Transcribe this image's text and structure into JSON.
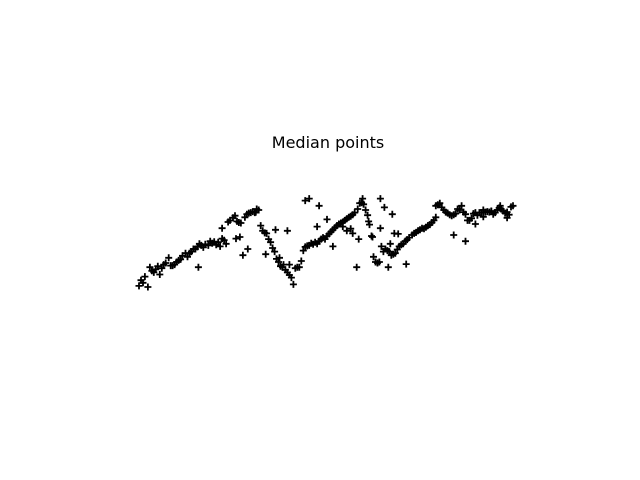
{
  "chart_data": {
    "type": "scatter",
    "title": "Median points",
    "xlabel": "",
    "ylabel": "",
    "xlim": [
      0,
      380
    ],
    "ylim": [
      -1,
      1
    ],
    "grid": false,
    "axes_visible": false,
    "marker": "+",
    "marker_color": "#000000",
    "series": [
      {
        "points": [
          [
            0,
            -0.96
          ],
          [
            2,
            -0.85
          ],
          [
            4,
            -0.9
          ],
          [
            6,
            -0.78
          ],
          [
            9,
            -0.98
          ],
          [
            11,
            -0.6
          ],
          [
            13,
            -0.67
          ],
          [
            15,
            -0.7
          ],
          [
            17,
            -0.64
          ],
          [
            19,
            -0.58
          ],
          [
            21,
            -0.74
          ],
          [
            23,
            -0.62
          ],
          [
            25,
            -0.55
          ],
          [
            27,
            -0.52
          ],
          [
            30,
            -0.42
          ],
          [
            32,
            -0.57
          ],
          [
            34,
            -0.57
          ],
          [
            36,
            -0.55
          ],
          [
            38,
            -0.5
          ],
          [
            40,
            -0.47
          ],
          [
            42,
            -0.45
          ],
          [
            44,
            -0.38
          ],
          [
            47,
            -0.33
          ],
          [
            49,
            -0.4
          ],
          [
            51,
            -0.33
          ],
          [
            53,
            -0.3
          ],
          [
            55,
            -0.25
          ],
          [
            57,
            -0.25
          ],
          [
            59,
            -0.21
          ],
          [
            61,
            -0.15
          ],
          [
            63,
            -0.18
          ],
          [
            65,
            -0.22
          ],
          [
            67,
            -0.16
          ],
          [
            70,
            -0.18
          ],
          [
            72,
            -0.1
          ],
          [
            74,
            -0.14
          ],
          [
            76,
            -0.11
          ],
          [
            78,
            -0.17
          ],
          [
            80,
            -0.12
          ],
          [
            82,
            -0.2
          ],
          [
            84,
            -0.05
          ],
          [
            86,
            -0.08
          ],
          [
            88,
            -0.15
          ],
          [
            90,
            0.27
          ],
          [
            92,
            0.3
          ],
          [
            95,
            0.35
          ],
          [
            97,
            0.39
          ],
          [
            99,
            0.28
          ],
          [
            101,
            0.26
          ],
          [
            103,
            0.25
          ],
          [
            105,
            -0.37
          ],
          [
            107,
            0.36
          ],
          [
            109,
            0.42
          ],
          [
            111,
            0.44
          ],
          [
            113,
            0.45
          ],
          [
            115,
            0.47
          ],
          [
            117,
            0.45
          ],
          [
            119,
            0.52
          ],
          [
            121,
            0.5
          ],
          [
            123,
            0.2
          ],
          [
            125,
            0.1
          ],
          [
            127,
            0.06
          ],
          [
            129,
            0.05
          ],
          [
            131,
            -0.06
          ],
          [
            133,
            -0.12
          ],
          [
            135,
            -0.23
          ],
          [
            137,
            -0.3
          ],
          [
            139,
            -0.44
          ],
          [
            141,
            -0.5
          ],
          [
            143,
            -0.58
          ],
          [
            145,
            -0.6
          ],
          [
            148,
            -0.65
          ],
          [
            150,
            -0.7
          ],
          [
            152,
            -0.75
          ],
          [
            154,
            -0.8
          ],
          [
            156,
            -0.93
          ],
          [
            158,
            -0.62
          ],
          [
            160,
            -0.6
          ],
          [
            162,
            -0.6
          ],
          [
            164,
            -0.48
          ],
          [
            166,
            -0.28
          ],
          [
            168,
            -0.21
          ],
          [
            170,
            -0.19
          ],
          [
            172,
            -0.18
          ],
          [
            174,
            -0.14
          ],
          [
            176,
            -0.16
          ],
          [
            178,
            -0.12
          ],
          [
            180,
            -0.15
          ],
          [
            182,
            -0.1
          ],
          [
            184,
            -0.06
          ],
          [
            186,
            -0.03
          ],
          [
            188,
            -0.06
          ],
          [
            190,
            0.0
          ],
          [
            192,
            0.04
          ],
          [
            194,
            0.08
          ],
          [
            196,
            0.12
          ],
          [
            198,
            0.16
          ],
          [
            200,
            0.2
          ],
          [
            202,
            0.23
          ],
          [
            204,
            0.25
          ],
          [
            206,
            0.27
          ],
          [
            208,
            0.3
          ],
          [
            210,
            0.33
          ],
          [
            212,
            0.36
          ],
          [
            214,
            0.38
          ],
          [
            216,
            0.41
          ],
          [
            218,
            0.45
          ],
          [
            221,
            0.52
          ],
          [
            223,
            0.63
          ],
          [
            225,
            0.64
          ],
          [
            227,
            0.61
          ],
          [
            229,
            0.5
          ],
          [
            231,
            0.4
          ],
          [
            233,
            0.22
          ],
          [
            235,
            0.0
          ],
          [
            237,
            -0.4
          ],
          [
            239,
            -0.5
          ],
          [
            241,
            -0.52
          ],
          [
            243,
            -0.5
          ],
          [
            245,
            -0.2
          ],
          [
            247,
            -0.3
          ],
          [
            249,
            -0.25
          ],
          [
            251,
            -0.28
          ],
          [
            253,
            -0.3
          ],
          [
            255,
            -0.37
          ],
          [
            257,
            -0.35
          ],
          [
            259,
            -0.33
          ],
          [
            261,
            -0.26
          ],
          [
            263,
            -0.2
          ],
          [
            265,
            -0.17
          ],
          [
            267,
            -0.15
          ],
          [
            269,
            -0.1
          ],
          [
            271,
            -0.07
          ],
          [
            273,
            -0.03
          ],
          [
            276,
            0.02
          ],
          [
            278,
            0.05
          ],
          [
            280,
            0.07
          ],
          [
            282,
            0.1
          ],
          [
            284,
            0.12
          ],
          [
            286,
            0.15
          ],
          [
            288,
            0.14
          ],
          [
            290,
            0.17
          ],
          [
            292,
            0.2
          ],
          [
            294,
            0.22
          ],
          [
            296,
            0.26
          ],
          [
            298,
            0.3
          ],
          [
            300,
            0.36
          ],
          [
            302,
            0.6
          ],
          [
            304,
            0.63
          ],
          [
            306,
            0.55
          ],
          [
            308,
            0.5
          ],
          [
            310,
            0.46
          ],
          [
            312,
            0.44
          ],
          [
            314,
            0.41
          ],
          [
            316,
            0.39
          ],
          [
            318,
            0.41
          ],
          [
            320,
            0.43
          ],
          [
            322,
            0.52
          ],
          [
            324,
            0.5
          ],
          [
            326,
            0.58
          ],
          [
            328,
            0.46
          ],
          [
            330,
            0.42
          ],
          [
            332,
            0.3
          ],
          [
            334,
            0.3
          ],
          [
            336,
            0.34
          ],
          [
            338,
            0.43
          ],
          [
            340,
            0.45
          ],
          [
            342,
            0.4
          ],
          [
            344,
            0.45
          ],
          [
            346,
            0.45
          ],
          [
            348,
            0.5
          ],
          [
            350,
            0.46
          ],
          [
            352,
            0.47
          ],
          [
            354,
            0.46
          ],
          [
            356,
            0.47
          ],
          [
            358,
            0.42
          ],
          [
            360,
            0.45
          ],
          [
            362,
            0.5
          ],
          [
            364,
            0.54
          ],
          [
            366,
            0.52
          ],
          [
            368,
            0.48
          ],
          [
            370,
            0.44
          ],
          [
            372,
            0.46
          ],
          [
            374,
            0.41
          ],
          [
            376,
            0.56
          ],
          [
            378,
            0.58
          ],
          [
            142,
            -0.42
          ],
          [
            146,
            -0.55
          ],
          [
            168,
            0.68
          ],
          [
            172,
            0.72
          ],
          [
            180,
            0.18
          ],
          [
            98,
            -0.05
          ],
          [
            102,
            -0.02
          ],
          [
            118,
            0.46
          ],
          [
            138,
            0.12
          ],
          [
            60,
            -0.6
          ],
          [
            210,
            0.1
          ],
          [
            214,
            0.14
          ],
          [
            226,
            0.72
          ],
          [
            248,
            0.55
          ],
          [
            256,
            0.42
          ],
          [
            206,
            0.18
          ],
          [
            216,
            0.05
          ],
          [
            222,
            -0.06
          ],
          [
            244,
            0.15
          ],
          [
            150,
            0.1
          ],
          [
            110,
            -0.25
          ],
          [
            128,
            -0.35
          ],
          [
            84,
            0.15
          ],
          [
            220,
            -0.6
          ],
          [
            232,
            0.28
          ],
          [
            236,
            -0.02
          ],
          [
            254,
            -0.15
          ],
          [
            262,
            0.04
          ],
          [
            270,
            -0.54
          ],
          [
            300,
            0.58
          ],
          [
            318,
            0.02
          ],
          [
            330,
            -0.1
          ],
          [
            340,
            0.23
          ],
          [
            348,
            0.37
          ],
          [
            356,
            0.48
          ],
          [
            365,
            0.58
          ],
          [
            372,
            0.35
          ],
          [
            190,
            0.32
          ],
          [
            182,
            0.58
          ],
          [
            152,
            -0.55
          ],
          [
            196,
            -0.2
          ],
          [
            244,
            0.72
          ],
          [
            252,
            -0.6
          ],
          [
            258,
            0.05
          ]
        ]
      }
    ]
  }
}
